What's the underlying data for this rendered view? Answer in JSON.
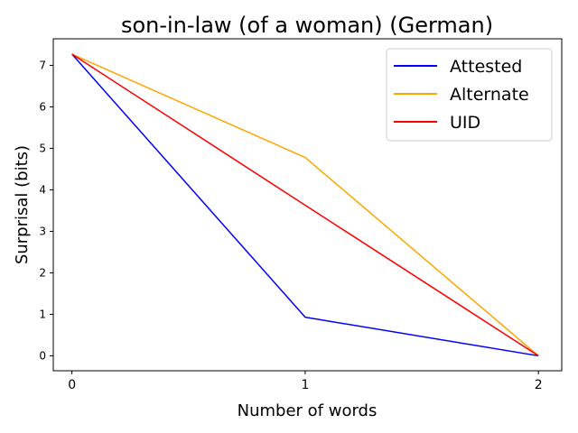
{
  "chart_data": {
    "type": "line",
    "title": "son-in-law (of a woman) (German)",
    "xlabel": "Number of words",
    "ylabel": "Surprisal (bits)",
    "x": [
      0,
      1,
      2
    ],
    "xticks": [
      "0",
      "1",
      "2"
    ],
    "yticks": [
      "0",
      "1",
      "2",
      "3",
      "4",
      "5",
      "6",
      "7"
    ],
    "xlim": [
      -0.08,
      2.1
    ],
    "ylim": [
      -0.36,
      7.64
    ],
    "grid": false,
    "legend_position": "top-right",
    "series": [
      {
        "name": "Attested",
        "color": "#0000ff",
        "values": [
          7.27,
          0.93,
          0.0
        ]
      },
      {
        "name": "Alternate",
        "color": "#ffa500",
        "values": [
          7.27,
          4.78,
          0.0
        ]
      },
      {
        "name": "UID",
        "color": "#ff0000",
        "values": [
          7.27,
          3.63,
          0.0
        ]
      }
    ]
  }
}
